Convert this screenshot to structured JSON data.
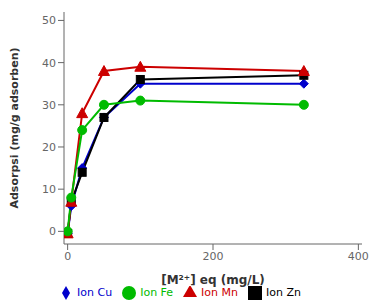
{
  "chart_data": {
    "type": "line",
    "xlabel": "[M²⁺] eq (mg/L)",
    "ylabel": "Adsorpsi (mg/g adsorben)",
    "x": [
      0,
      5,
      20,
      50,
      100,
      325
    ],
    "series": [
      {
        "name": "Ion Cu",
        "color": "#0000CC",
        "marker": "diamond",
        "values": [
          -0.5,
          6,
          15,
          27,
          35,
          35
        ]
      },
      {
        "name": "Ion Zn",
        "color": "#000000",
        "marker": "square",
        "values": [
          -0.5,
          7,
          14,
          27,
          36,
          37
        ]
      },
      {
        "name": "Ion Mn",
        "color": "#CC0000",
        "marker": "triangle",
        "values": [
          -0.5,
          7,
          28,
          38,
          39,
          38
        ]
      },
      {
        "name": "Ion Fe",
        "color": "#00BB00",
        "marker": "circle",
        "values": [
          0,
          8,
          24,
          30,
          31,
          30
        ]
      }
    ],
    "xlim": [
      -5,
      405
    ],
    "ylim": [
      -3,
      52
    ],
    "xticks": [
      0,
      200,
      400
    ],
    "yticks": [
      0,
      10,
      20,
      30,
      40,
      50
    ],
    "grid": false,
    "legend": "bottom"
  }
}
